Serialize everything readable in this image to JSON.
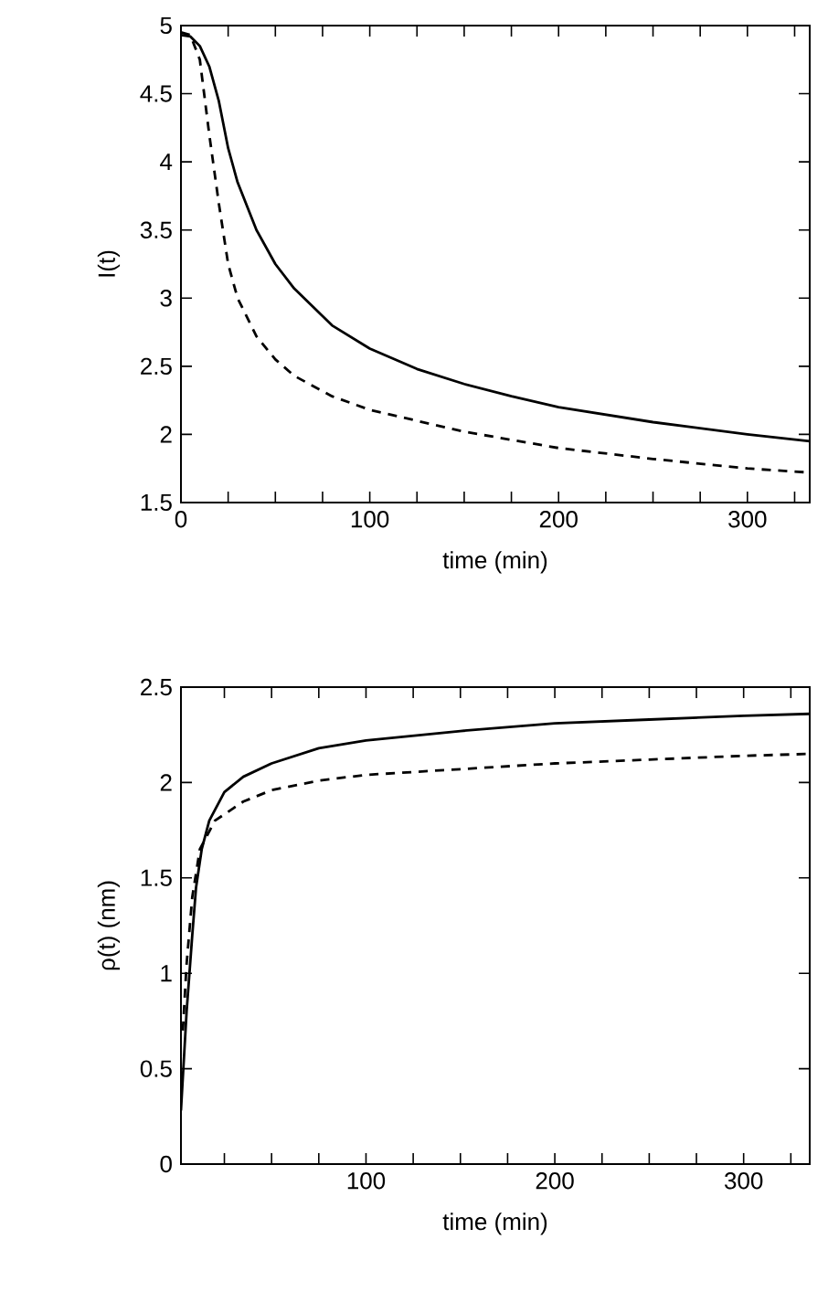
{
  "chart_data": [
    {
      "type": "line",
      "xlabel": "time (min)",
      "ylabel": "I(t)",
      "xlim": [
        0,
        333
      ],
      "ylim": [
        1.5,
        5
      ],
      "xticks": [
        0,
        {
          "value": 25,
          "label": null
        },
        {
          "value": 50,
          "label": null
        },
        {
          "value": 75,
          "label": null
        },
        100,
        {
          "value": 125,
          "label": null
        },
        {
          "value": 150,
          "label": null
        },
        {
          "value": 175,
          "label": null
        },
        200,
        {
          "value": 225,
          "label": null
        },
        {
          "value": 250,
          "label": null
        },
        {
          "value": 275,
          "label": null
        },
        300,
        {
          "value": 325,
          "label": null
        }
      ],
      "yticks": [
        1.5,
        2,
        2.5,
        3,
        3.5,
        4,
        4.5,
        5
      ],
      "grid": false,
      "series": [
        {
          "color": "#000000",
          "line_style": "solid",
          "x": [
            0,
            5,
            10,
            15,
            20,
            25,
            30,
            40,
            50,
            60,
            80,
            100,
            125,
            150,
            175,
            200,
            250,
            300,
            333
          ],
          "values": [
            4.93,
            4.92,
            4.85,
            4.7,
            4.45,
            4.1,
            3.85,
            3.5,
            3.25,
            3.07,
            2.8,
            2.63,
            2.48,
            2.37,
            2.28,
            2.2,
            2.09,
            2.0,
            1.95
          ]
        },
        {
          "color": "#000000",
          "line_style": "dashed",
          "x": [
            0,
            5,
            10,
            15,
            20,
            25,
            30,
            40,
            50,
            60,
            80,
            100,
            150,
            200,
            250,
            300,
            333
          ],
          "values": [
            4.95,
            4.93,
            4.75,
            4.2,
            3.7,
            3.25,
            3.0,
            2.72,
            2.55,
            2.43,
            2.28,
            2.18,
            2.02,
            1.9,
            1.82,
            1.75,
            1.72
          ]
        }
      ]
    },
    {
      "type": "line",
      "xlabel": "time (min)",
      "ylabel": "ρ(t) (nm)",
      "xlim": [
        2,
        335
      ],
      "ylim": [
        0,
        2.5
      ],
      "xticks": [
        {
          "value": 25,
          "label": null
        },
        {
          "value": 50,
          "label": null
        },
        {
          "value": 75,
          "label": null
        },
        100,
        {
          "value": 125,
          "label": null
        },
        {
          "value": 150,
          "label": null
        },
        {
          "value": 175,
          "label": null
        },
        200,
        {
          "value": 225,
          "label": null
        },
        {
          "value": 250,
          "label": null
        },
        {
          "value": 275,
          "label": null
        },
        300,
        {
          "value": 325,
          "label": null
        }
      ],
      "yticks": [
        0,
        0.5,
        1,
        1.5,
        2,
        2.5
      ],
      "grid": false,
      "series": [
        {
          "color": "#000000",
          "line_style": "solid",
          "x": [
            2,
            5,
            8,
            10,
            13,
            17,
            25,
            35,
            50,
            75,
            100,
            150,
            200,
            250,
            300,
            335
          ],
          "values": [
            0.28,
            0.8,
            1.2,
            1.45,
            1.65,
            1.8,
            1.95,
            2.03,
            2.1,
            2.18,
            2.22,
            2.27,
            2.31,
            2.33,
            2.35,
            2.36
          ]
        },
        {
          "color": "#000000",
          "line_style": "dashed",
          "x": [
            3,
            5,
            8,
            12,
            20,
            35,
            50,
            75,
            100,
            150,
            200,
            250,
            300,
            335
          ],
          "values": [
            0.7,
            1.05,
            1.4,
            1.65,
            1.8,
            1.9,
            1.96,
            2.01,
            2.04,
            2.07,
            2.1,
            2.12,
            2.14,
            2.15
          ]
        }
      ]
    }
  ]
}
